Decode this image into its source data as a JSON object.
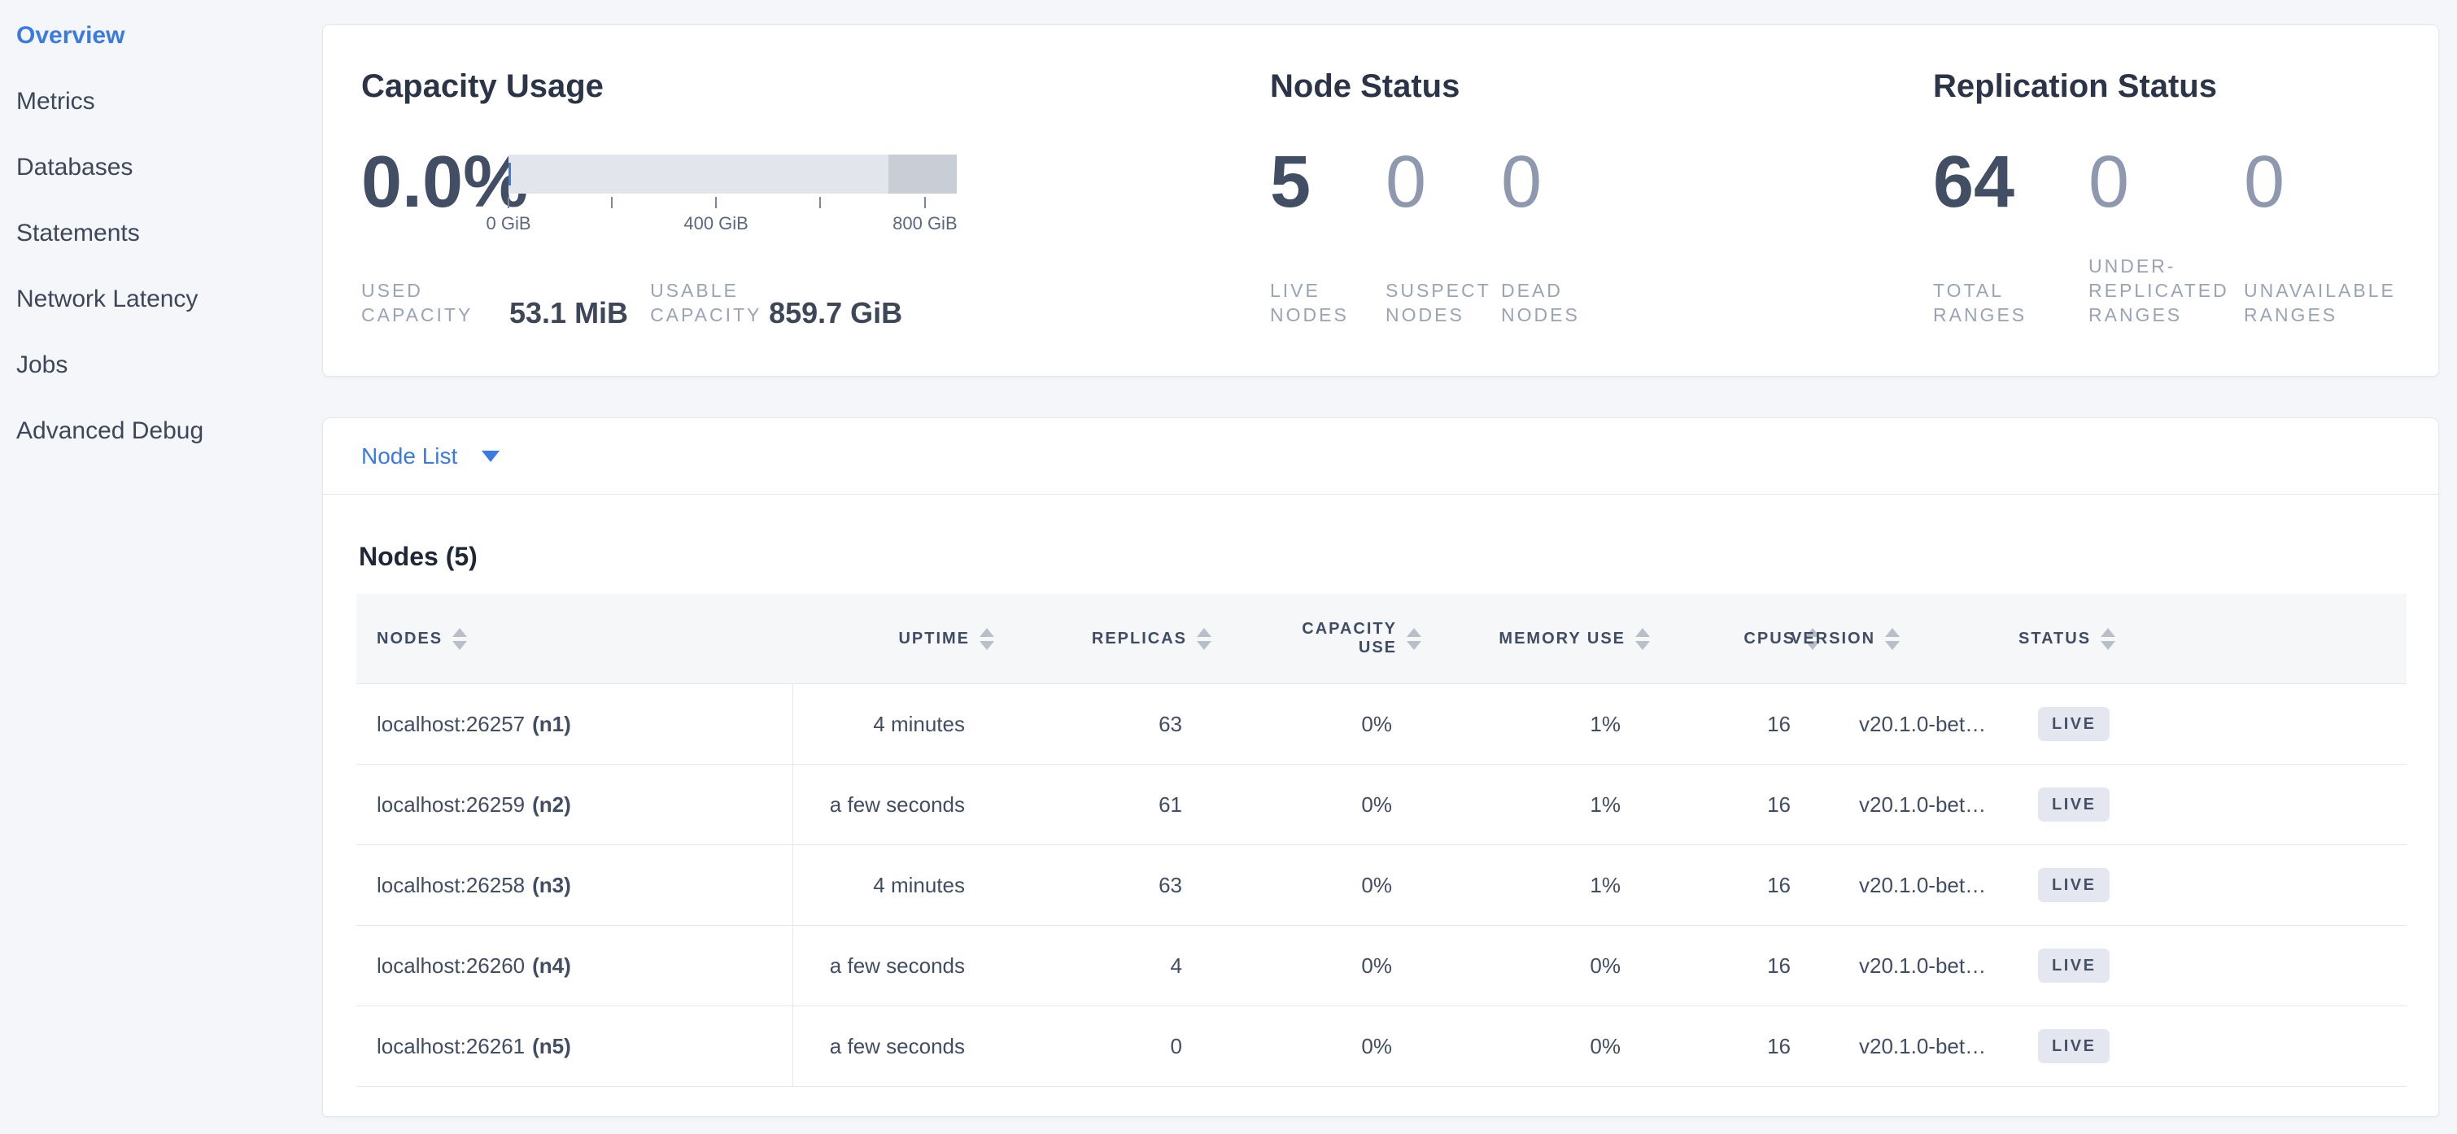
{
  "sidebar": {
    "items": [
      {
        "label": "Overview",
        "active": true
      },
      {
        "label": "Metrics",
        "active": false
      },
      {
        "label": "Databases",
        "active": false
      },
      {
        "label": "Statements",
        "active": false
      },
      {
        "label": "Network Latency",
        "active": false
      },
      {
        "label": "Jobs",
        "active": false
      },
      {
        "label": "Advanced Debug",
        "active": false
      }
    ]
  },
  "summary": {
    "capacity": {
      "title": "Capacity Usage",
      "percent": "0.0%",
      "gauge": {
        "axis_ticks": [
          {
            "pos": 0.0,
            "label": "0 GiB"
          },
          {
            "pos": 0.23,
            "label": ""
          },
          {
            "pos": 0.463,
            "label": "400 GiB"
          },
          {
            "pos": 0.695,
            "label": ""
          },
          {
            "pos": 0.929,
            "label": "800 GiB"
          }
        ]
      },
      "used": {
        "label": "USED CAPACITY",
        "value": "53.1 MiB"
      },
      "usable": {
        "label": "USABLE CAPACITY",
        "value": "859.7 GiB"
      }
    },
    "node_status": {
      "title": "Node Status",
      "stats": [
        {
          "value": "5",
          "label": "LIVE NODES",
          "muted": false
        },
        {
          "value": "0",
          "label": "SUSPECT NODES",
          "muted": true
        },
        {
          "value": "0",
          "label": "DEAD NODES",
          "muted": true
        }
      ]
    },
    "replication": {
      "title": "Replication Status",
      "stats": [
        {
          "value": "64",
          "label": "TOTAL RANGES",
          "muted": false
        },
        {
          "value": "0",
          "label": "UNDER-REPLICATED RANGES",
          "muted": true
        },
        {
          "value": "0",
          "label": "UNAVAILABLE RANGES",
          "muted": true
        }
      ]
    }
  },
  "view_selector": {
    "label": "Node List",
    "icon": "chevron-down-icon"
  },
  "nodes": {
    "heading": "Nodes (5)",
    "table": {
      "columns": [
        {
          "label": "NODES",
          "key": "node",
          "align": "left",
          "wrap": false
        },
        {
          "label": "UPTIME",
          "key": "uptime",
          "align": "right",
          "wrap": false
        },
        {
          "label": "REPLICAS",
          "key": "replicas",
          "align": "right",
          "wrap": false
        },
        {
          "label": "CAPACITY USE",
          "key": "capacity_use",
          "align": "right",
          "wrap": true
        },
        {
          "label": "MEMORY USE",
          "key": "memory_use",
          "align": "right",
          "wrap": false
        },
        {
          "label": "CPUS",
          "key": "cpus",
          "align": "right",
          "wrap": false
        },
        {
          "label": "VERSION",
          "key": "version",
          "align": "left",
          "wrap": false
        },
        {
          "label": "STATUS",
          "key": "status",
          "align": "left",
          "wrap": false
        }
      ],
      "rows": [
        {
          "address": "localhost:26257",
          "id": "(n1)",
          "uptime": "4 minutes",
          "replicas": "63",
          "capacity_use": "0%",
          "memory_use": "1%",
          "cpus": "16",
          "version": "v20.1.0-bet…",
          "status": "LIVE"
        },
        {
          "address": "localhost:26259",
          "id": "(n2)",
          "uptime": "a few seconds",
          "replicas": "61",
          "capacity_use": "0%",
          "memory_use": "1%",
          "cpus": "16",
          "version": "v20.1.0-bet…",
          "status": "LIVE"
        },
        {
          "address": "localhost:26258",
          "id": "(n3)",
          "uptime": "4 minutes",
          "replicas": "63",
          "capacity_use": "0%",
          "memory_use": "1%",
          "cpus": "16",
          "version": "v20.1.0-bet…",
          "status": "LIVE"
        },
        {
          "address": "localhost:26260",
          "id": "(n4)",
          "uptime": "a few seconds",
          "replicas": "4",
          "capacity_use": "0%",
          "memory_use": "0%",
          "cpus": "16",
          "version": "v20.1.0-bet…",
          "status": "LIVE"
        },
        {
          "address": "localhost:26261",
          "id": "(n5)",
          "uptime": "a few seconds",
          "replicas": "0",
          "capacity_use": "0%",
          "memory_use": "0%",
          "cpus": "16",
          "version": "v20.1.0-bet…",
          "status": "LIVE"
        }
      ]
    }
  },
  "colors": {
    "accent_blue": "#3a7be3",
    "gauge_light": "#e2e5ec",
    "gauge_dark": "#c9cdd6",
    "gauge_used_blue": "#3e7ce0",
    "badge_bg": "#e4e7ef",
    "page_bg": "#f4f6fa"
  }
}
